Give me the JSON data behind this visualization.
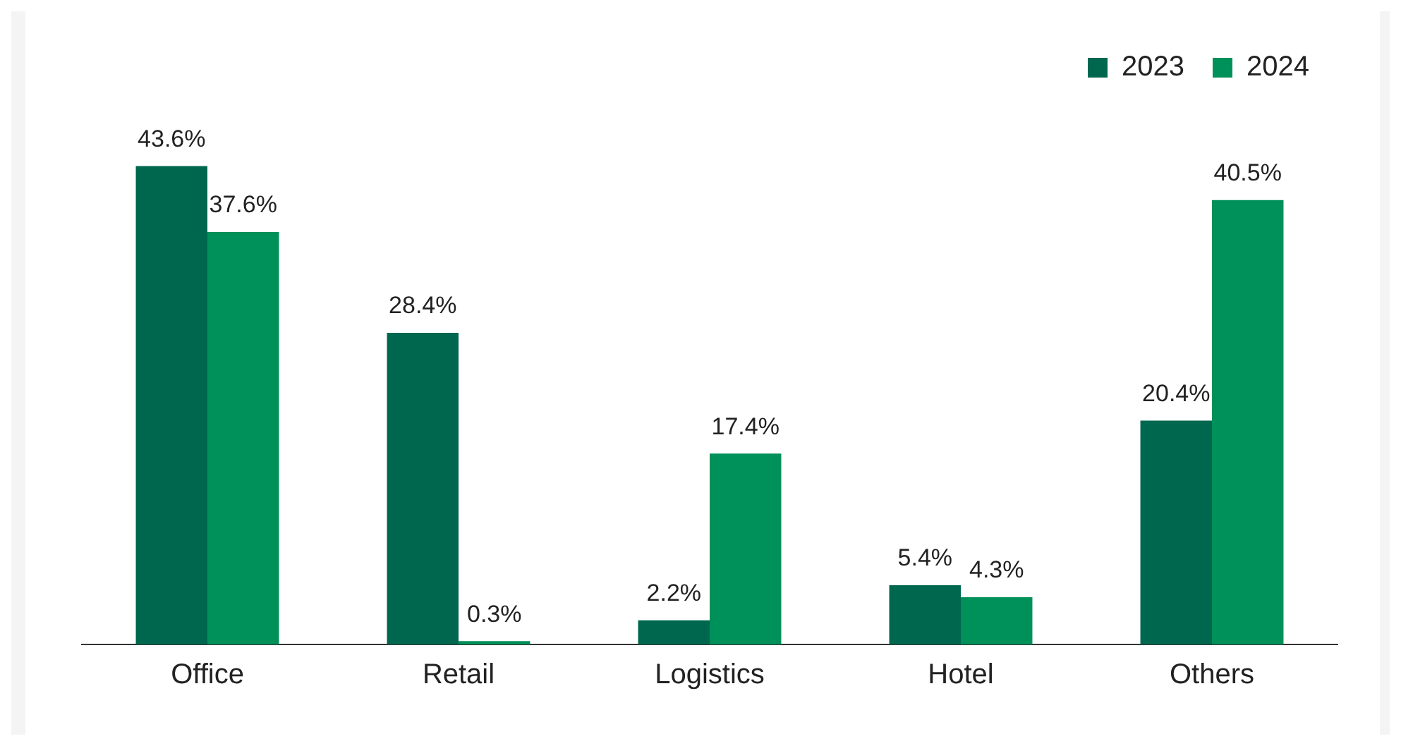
{
  "chart_data": {
    "type": "bar",
    "categories": [
      "Office",
      "Retail",
      "Logistics",
      "Hotel",
      "Others"
    ],
    "series": [
      {
        "name": "2023",
        "color": "#00674f",
        "values": [
          43.6,
          28.4,
          2.2,
          5.4,
          20.4
        ],
        "value_labels": [
          "43.6%",
          "28.4%",
          "2.2%",
          "5.4%",
          "20.4%"
        ]
      },
      {
        "name": "2024",
        "color": "#009059",
        "values": [
          37.6,
          0.3,
          17.4,
          4.3,
          40.5
        ],
        "value_labels": [
          "37.6%",
          "0.3%",
          "17.4%",
          "4.3%",
          "40.5%"
        ]
      }
    ],
    "legend": "top right",
    "grid": false
  }
}
